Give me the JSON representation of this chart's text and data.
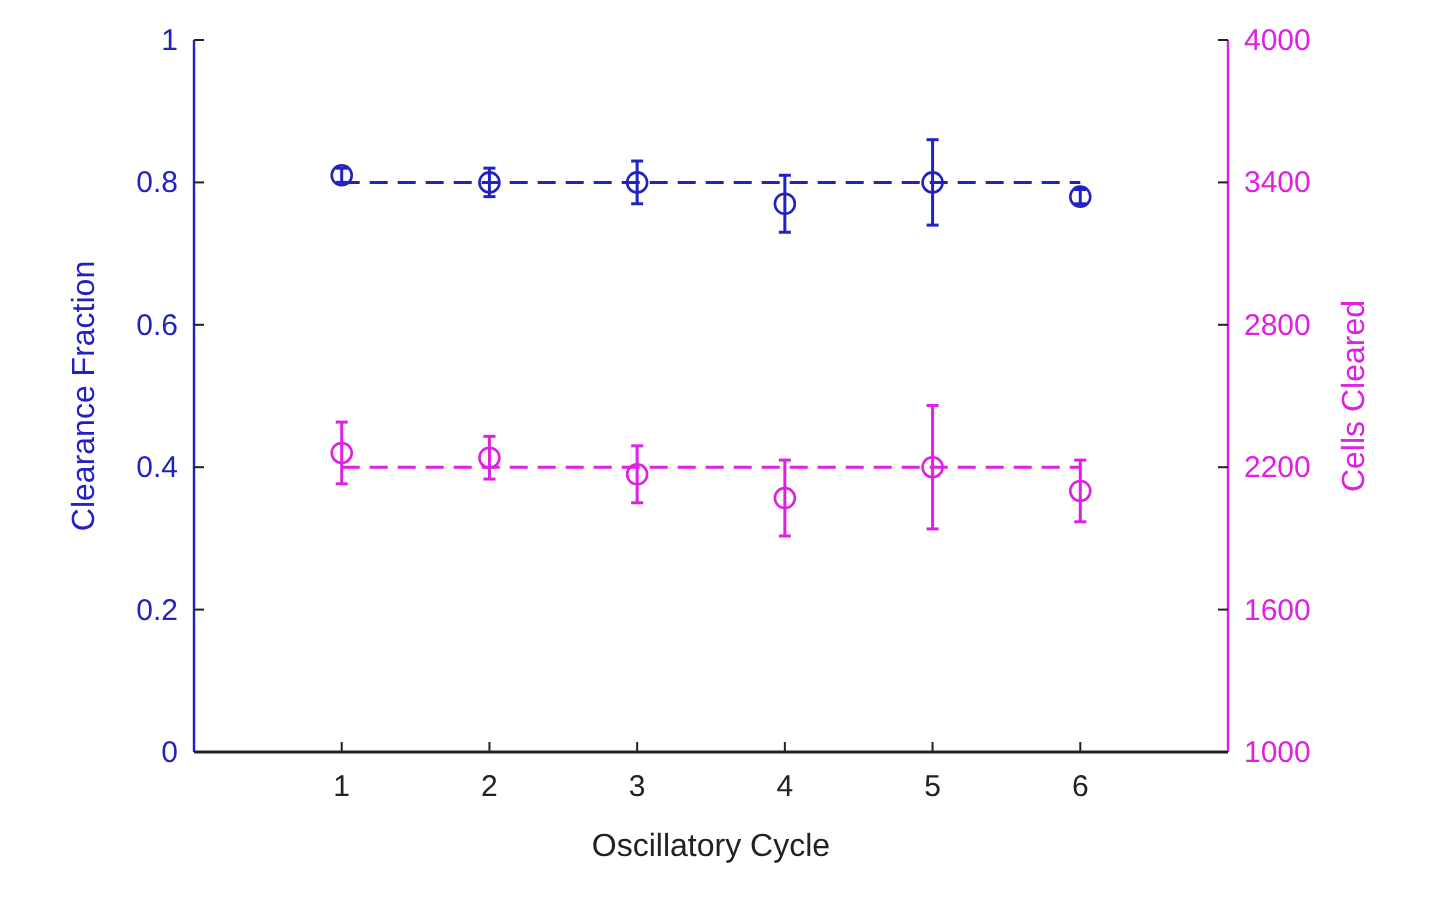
{
  "chart_data": {
    "type": "scatter",
    "xlabel": "Oscillatory Cycle",
    "ylabel": "Clearance Fraction",
    "y2label": "Cells Cleared",
    "xlim": [
      0,
      7
    ],
    "xticks": [
      1,
      2,
      3,
      4,
      5,
      6
    ],
    "ylim": [
      0,
      1
    ],
    "yticks": [
      0,
      0.2,
      0.4,
      0.6,
      0.8,
      1
    ],
    "y2lim": [
      1000,
      4000
    ],
    "y2ticks": [
      1000,
      1600,
      2200,
      2800,
      3400,
      4000
    ],
    "marker": "circle",
    "grid": false,
    "series": [
      {
        "color": "#2222c0",
        "x": [
          1,
          2,
          3,
          4,
          5,
          6
        ],
        "values": [
          0.81,
          0.8,
          0.8,
          0.77,
          0.8,
          0.78
        ],
        "errors": [
          0.01,
          0.02,
          0.03,
          0.04,
          0.06,
          0.01
        ]
      },
      {
        "type": "line",
        "line_style": "dashed",
        "marker": "none",
        "color": "#2222c0",
        "x": [
          1,
          6
        ],
        "values": [
          0.8,
          0.8
        ]
      },
      {
        "axis": "y2",
        "color": "#e020e0",
        "x": [
          1,
          2,
          3,
          4,
          5,
          6
        ],
        "values": [
          2260,
          2240,
          2170,
          2070,
          2200,
          2100
        ],
        "errors": [
          130,
          90,
          120,
          160,
          260,
          130
        ]
      },
      {
        "type": "line",
        "axis": "y2",
        "line_style": "dashed",
        "marker": "none",
        "color": "#e020e0",
        "x": [
          1,
          6
        ],
        "values": [
          2200,
          2200
        ]
      }
    ]
  }
}
